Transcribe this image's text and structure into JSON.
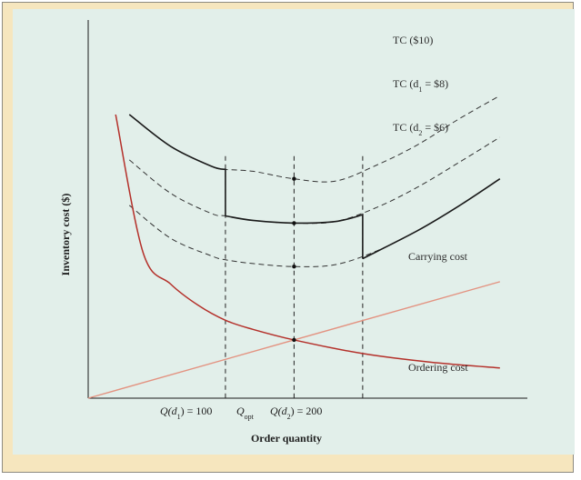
{
  "chart_data": {
    "type": "line",
    "title": "",
    "xlabel": "Order quantity",
    "ylabel": "Inventory cost ($)",
    "x_ticks": [
      {
        "x": 100,
        "main": "Q",
        "open": "(d",
        "sub": "1",
        "close": ") = 100"
      },
      {
        "x": 150,
        "main": "Q",
        "open": "",
        "sub": "opt",
        "close": ""
      },
      {
        "x": 200,
        "main": "Q",
        "open": "(d",
        "sub": "2",
        "close": ") = 200"
      }
    ],
    "xlim": [
      0,
      320
    ],
    "ylim": [
      0,
      100
    ],
    "series": [
      {
        "name": "TC ($10)",
        "label_main": "TC ($10)",
        "label_sub": "",
        "label_rest": "",
        "style": "dashed",
        "x": [
          30,
          60,
          90,
          100,
          120,
          150,
          180,
          210,
          240,
          270,
          300
        ],
        "y": [
          75,
          66.6,
          61.3,
          60.5,
          60,
          58,
          57.4,
          61.6,
          67,
          73.8,
          80
        ]
      },
      {
        "name": "TC (d1 = $8)",
        "label_main": "TC (d",
        "label_sub": "1",
        "label_rest": " = $8)",
        "style": "dashed",
        "x": [
          30,
          60,
          90,
          100,
          120,
          150,
          180,
          210,
          240,
          270,
          300
        ],
        "y": [
          63,
          54.2,
          48.8,
          48.2,
          47,
          46.3,
          46.7,
          50.4,
          55.8,
          62.3,
          69
        ]
      },
      {
        "name": "TC (d2 = $6)",
        "label_main": "TC (d",
        "label_sub": "2",
        "label_rest": " = $6)",
        "style": "dashed",
        "x": [
          30,
          60,
          90,
          100,
          120,
          150,
          180,
          210,
          240,
          270,
          300
        ],
        "y": [
          51,
          42.3,
          37.6,
          36.6,
          35.6,
          34.8,
          35.3,
          38.9,
          44.3,
          50.8,
          58
        ]
      },
      {
        "name": "Carrying cost",
        "label_main": "Carrying cost",
        "label_sub": "",
        "label_rest": "",
        "style": "solid-light",
        "x": [
          0,
          150,
          300
        ],
        "y": [
          0,
          15.4,
          30.8
        ]
      },
      {
        "name": "Ordering cost",
        "label_main": "Ordering cost",
        "label_sub": "",
        "label_rest": "",
        "style": "solid-dark",
        "x": [
          20,
          40,
          60,
          80,
          100,
          120,
          150,
          200,
          250,
          300
        ],
        "y": [
          75,
          38.5,
          30.2,
          24.6,
          20.6,
          18.2,
          15.4,
          11.8,
          9.5,
          8
        ]
      }
    ],
    "optimal_cost_curve": {
      "x": [
        30,
        60,
        90,
        100,
        100,
        120,
        150,
        180,
        200,
        200,
        240,
        270,
        300
      ],
      "y": [
        75,
        66.6,
        61.3,
        60.5,
        48.2,
        47,
        46.3,
        46.7,
        48.5,
        36.9,
        44.3,
        50.8,
        58
      ]
    },
    "markers": [
      {
        "x": 150,
        "y": 58
      },
      {
        "x": 150,
        "y": 46.3
      },
      {
        "x": 150,
        "y": 34.8
      },
      {
        "x": 150,
        "y": 15.4
      }
    ],
    "colors": {
      "tc": "#1a1a1a",
      "carrying": "#e39280",
      "ordering": "#b4302a",
      "axis": "#1a1a1a"
    },
    "grid": false
  }
}
